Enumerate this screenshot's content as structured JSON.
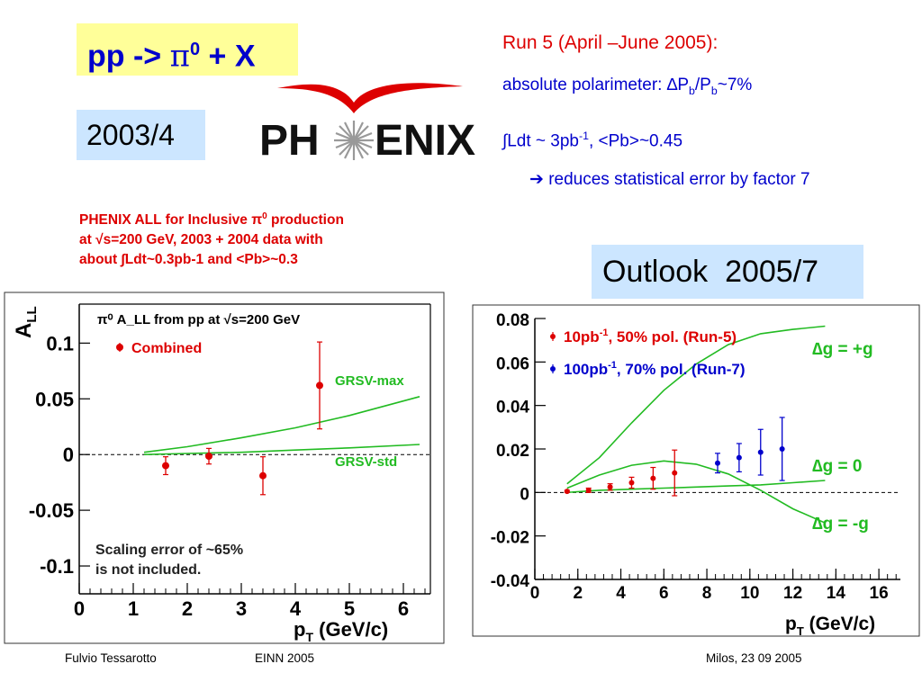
{
  "slide": {
    "title_prefix": "pp -> ",
    "title_pi": "π",
    "title_sup": "0",
    "title_suffix": " + X",
    "year_box": "2003/4",
    "logo_text_left": "PH",
    "logo_text_right": "ENIX",
    "run5_heading": "Run 5 (April –June 2005):",
    "polarimeter_prefix": "absolute polarimeter: ∆P",
    "polarimeter_sub1": "b",
    "polarimeter_mid": "/P",
    "polarimeter_sub2": "b",
    "polarimeter_suffix": "~7%",
    "ldt_prefix": "∫Ldt ~ 3pb",
    "ldt_sup": "-1",
    "ldt_suffix": ", <Pb>~0.45",
    "reduce_text": " reduces statistical error by factor 7",
    "reduce_arrow": "➔",
    "caption_line1": "PHENIX ALL for Inclusive π",
    "caption_line1_sup": "0",
    "caption_line1_end": " production",
    "caption_line2": "at √s=200 GeV, 2003 + 2004 data with",
    "caption_line3": "about ∫Ldt~0.3pb-1 and <Pb>~0.3",
    "outlook_box": "Outlook  2005/7",
    "footer_author": "Fulvio Tessarotto",
    "footer_conference": "EINN 2005",
    "footer_place_date": "Milos,   23 09 2005"
  },
  "colors": {
    "title_bg": "#ffff99",
    "info_box_bg": "#cce6ff",
    "data_red": "#dd0000",
    "data_blue": "#0000cc",
    "theory_green": "#22bb22",
    "text_blue": "#0000cc"
  },
  "chart_data": [
    {
      "type": "scatter",
      "ylabel": "A",
      "ylabel_sub": "LL",
      "xlabel": "p",
      "xlabel_sub": "T",
      "xlabel_unit": " (GeV/c)",
      "header_text": "π⁰ A_LL from pp at √s=200 GeV",
      "xlim": [
        0,
        6.5
      ],
      "ylim": [
        -0.125,
        0.135
      ],
      "xticks": [
        0,
        1,
        2,
        3,
        4,
        5,
        6
      ],
      "yticks": [
        0.1,
        0.05,
        0,
        -0.05,
        -0.1
      ],
      "ytick_labels": [
        "0.1",
        "0.05",
        "0",
        "-0.05",
        "-0.1"
      ],
      "grid": false,
      "legend_position": "top-left",
      "series": [
        {
          "name": "Combined",
          "color": "#dd0000",
          "points": [
            {
              "x": 1.6,
              "y": -0.01,
              "err": 0.008
            },
            {
              "x": 2.4,
              "y": -0.0015,
              "err": 0.007
            },
            {
              "x": 3.4,
              "y": -0.019,
              "err": 0.017
            },
            {
              "x": 4.45,
              "y": 0.062,
              "err": 0.039
            }
          ]
        }
      ],
      "curves": [
        {
          "name": "GRSV-max",
          "color": "#22bb22",
          "x": [
            1.2,
            2.0,
            3.0,
            4.0,
            5.0,
            6.3
          ],
          "y": [
            0.002,
            0.007,
            0.015,
            0.024,
            0.035,
            0.052
          ]
        },
        {
          "name": "GRSV-std",
          "color": "#22bb22",
          "x": [
            1.2,
            2.0,
            3.0,
            4.0,
            5.0,
            6.3
          ],
          "y": [
            0.0,
            0.001,
            0.002,
            0.004,
            0.006,
            0.009
          ]
        }
      ],
      "annotations": [
        "GRSV-max",
        "GRSV-std",
        "Scaling error of ~65%",
        "is not included."
      ]
    },
    {
      "type": "scatter",
      "xlabel": "p",
      "xlabel_sub": "T",
      "xlabel_unit": " (GeV/c)",
      "xlim": [
        0,
        17
      ],
      "ylim": [
        -0.04,
        0.08
      ],
      "xticks": [
        0,
        2,
        4,
        6,
        8,
        10,
        12,
        14,
        16
      ],
      "yticks": [
        0.08,
        0.06,
        0.04,
        0.02,
        0,
        -0.02,
        -0.04
      ],
      "ytick_labels": [
        "0.08",
        "0.06",
        "0.04",
        "0.02",
        "0",
        "-0.02",
        "-0.04"
      ],
      "grid": false,
      "legend_position": "top-left",
      "series": [
        {
          "name": "10pb-1, 50% pol. (Run-5)",
          "legend_main": "10pb",
          "legend_sup": "-1",
          "legend_rest": ", 50% pol. (Run-5)",
          "color": "#dd0000",
          "points": [
            {
              "x": 1.5,
              "y": 0.0005,
              "err": 0.0005
            },
            {
              "x": 2.5,
              "y": 0.001,
              "err": 0.001
            },
            {
              "x": 3.5,
              "y": 0.0025,
              "err": 0.0015
            },
            {
              "x": 4.5,
              "y": 0.0045,
              "err": 0.0025
            },
            {
              "x": 5.5,
              "y": 0.0065,
              "err": 0.005
            },
            {
              "x": 6.5,
              "y": 0.009,
              "err": 0.0105
            }
          ]
        },
        {
          "name": "100pb-1, 70% pol. (Run-7)",
          "legend_main": "100pb",
          "legend_sup": "-1",
          "legend_rest": ", 70% pol. (Run-7)",
          "color": "#0000cc",
          "points": [
            {
              "x": 8.5,
              "y": 0.0135,
              "err": 0.0045
            },
            {
              "x": 9.5,
              "y": 0.016,
              "err": 0.0065
            },
            {
              "x": 10.5,
              "y": 0.0185,
              "err": 0.0105
            },
            {
              "x": 11.5,
              "y": 0.02,
              "err": 0.0145
            }
          ]
        }
      ],
      "curves": [
        {
          "name": "∆g = +g",
          "color": "#22bb22",
          "x": [
            1.5,
            3,
            4.5,
            6,
            7.5,
            9,
            10.5,
            12,
            13.5
          ],
          "y": [
            0.004,
            0.016,
            0.032,
            0.047,
            0.059,
            0.068,
            0.073,
            0.075,
            0.0765
          ]
        },
        {
          "name": "∆g = 0",
          "color": "#22bb22",
          "x": [
            1.5,
            3,
            4.5,
            6,
            7.5,
            9,
            10.5,
            12,
            13.5
          ],
          "y": [
            0.0,
            0.001,
            0.0015,
            0.002,
            0.0025,
            0.003,
            0.0035,
            0.0045,
            0.0055
          ]
        },
        {
          "name": "∆g = -g",
          "color": "#22bb22",
          "x": [
            1.5,
            3,
            4.5,
            6,
            7.5,
            9,
            10.5,
            12,
            13.5
          ],
          "y": [
            0.002,
            0.008,
            0.0125,
            0.0145,
            0.013,
            0.0085,
            0.001,
            -0.0075,
            -0.014
          ]
        }
      ],
      "curve_labels": [
        "∆g = +g",
        "∆g = 0",
        "∆g = -g"
      ]
    }
  ]
}
